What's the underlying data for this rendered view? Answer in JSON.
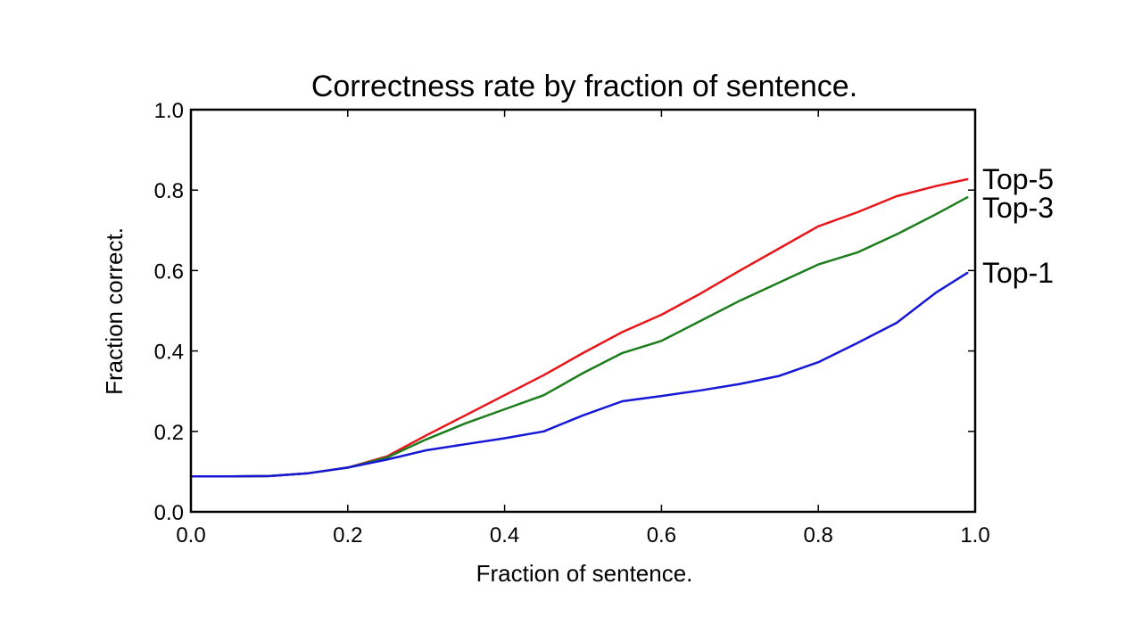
{
  "chart_data": {
    "type": "line",
    "title": "Correctness rate by fraction of sentence.",
    "xlabel": "Fraction of sentence.",
    "ylabel": "Fraction correct.",
    "xlim": [
      0.0,
      1.0
    ],
    "ylim": [
      0.0,
      1.0
    ],
    "xticks": [
      "0.0",
      "0.2",
      "0.4",
      "0.6",
      "0.8",
      "1.0"
    ],
    "yticks": [
      "0.0",
      "0.2",
      "0.4",
      "0.6",
      "0.8",
      "1.0"
    ],
    "grid": false,
    "legend": "inline labels at right end of each line",
    "series": [
      {
        "name": "Top-5",
        "color": "#e8151b",
        "x": [
          0.0,
          0.05,
          0.1,
          0.15,
          0.2,
          0.25,
          0.3,
          0.35,
          0.4,
          0.45,
          0.5,
          0.55,
          0.6,
          0.65,
          0.7,
          0.75,
          0.8,
          0.85,
          0.9,
          0.95,
          0.99
        ],
        "y": [
          0.088,
          0.088,
          0.089,
          0.096,
          0.11,
          0.138,
          0.19,
          0.24,
          0.29,
          0.34,
          0.395,
          0.447,
          0.49,
          0.543,
          0.6,
          0.655,
          0.71,
          0.745,
          0.785,
          0.81,
          0.827
        ]
      },
      {
        "name": "Top-3",
        "color": "#1c7d1c",
        "x": [
          0.0,
          0.05,
          0.1,
          0.15,
          0.2,
          0.25,
          0.3,
          0.35,
          0.4,
          0.45,
          0.5,
          0.55,
          0.6,
          0.65,
          0.7,
          0.75,
          0.8,
          0.85,
          0.9,
          0.95,
          0.99
        ],
        "y": [
          0.088,
          0.088,
          0.089,
          0.096,
          0.11,
          0.135,
          0.18,
          0.22,
          0.255,
          0.29,
          0.345,
          0.395,
          0.425,
          0.475,
          0.525,
          0.57,
          0.615,
          0.645,
          0.69,
          0.74,
          0.782
        ]
      },
      {
        "name": "Top-1",
        "color": "#1717d6",
        "x": [
          0.0,
          0.05,
          0.1,
          0.15,
          0.2,
          0.25,
          0.3,
          0.35,
          0.4,
          0.45,
          0.5,
          0.55,
          0.6,
          0.65,
          0.7,
          0.75,
          0.8,
          0.85,
          0.9,
          0.95,
          0.99
        ],
        "y": [
          0.088,
          0.088,
          0.089,
          0.096,
          0.11,
          0.13,
          0.153,
          0.168,
          0.183,
          0.2,
          0.24,
          0.275,
          0.288,
          0.302,
          0.318,
          0.338,
          0.372,
          0.42,
          0.47,
          0.545,
          0.594
        ]
      }
    ]
  }
}
